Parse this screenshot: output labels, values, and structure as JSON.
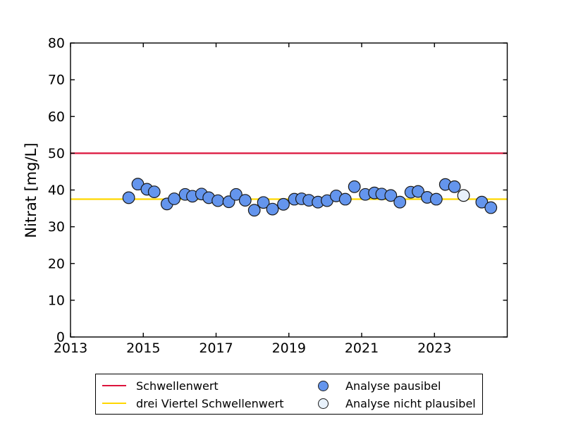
{
  "figure": {
    "background": "#ffffff"
  },
  "chart_data": {
    "type": "scatter",
    "title": "",
    "xlabel": "",
    "ylabel": "Nitrat [mg/L]",
    "xlim": [
      2013,
      2025
    ],
    "ylim": [
      0,
      80
    ],
    "xticks": [
      2013,
      2015,
      2017,
      2019,
      2021,
      2023
    ],
    "yticks": [
      0,
      10,
      20,
      30,
      40,
      50,
      60,
      70,
      80
    ],
    "grid": false,
    "hlines": [
      {
        "label": "Schwellenwert",
        "y": 50,
        "color": "#dc143c"
      },
      {
        "label": "drei Viertel Schwellenwert",
        "y": 37.5,
        "color": "#ffd700"
      }
    ],
    "series": [
      {
        "name": "Analyse pausibel",
        "marker": "circle-filled",
        "fill": "#6495ed",
        "edge": "#1a1a1a",
        "points": [
          [
            2014.6,
            37.9
          ],
          [
            2014.85,
            41.6
          ],
          [
            2015.1,
            40.2
          ],
          [
            2015.3,
            39.5
          ],
          [
            2015.65,
            36.2
          ],
          [
            2015.85,
            37.6
          ],
          [
            2016.15,
            38.8
          ],
          [
            2016.35,
            38.3
          ],
          [
            2016.6,
            38.9
          ],
          [
            2016.8,
            37.9
          ],
          [
            2017.05,
            37.1
          ],
          [
            2017.35,
            36.8
          ],
          [
            2017.55,
            38.8
          ],
          [
            2017.8,
            37.2
          ],
          [
            2018.05,
            34.5
          ],
          [
            2018.3,
            36.6
          ],
          [
            2018.55,
            34.8
          ],
          [
            2018.85,
            36.1
          ],
          [
            2019.15,
            37.5
          ],
          [
            2019.35,
            37.6
          ],
          [
            2019.55,
            37.2
          ],
          [
            2019.8,
            36.7
          ],
          [
            2020.05,
            37.1
          ],
          [
            2020.3,
            38.4
          ],
          [
            2020.55,
            37.5
          ],
          [
            2020.8,
            40.9
          ],
          [
            2021.1,
            38.8
          ],
          [
            2021.35,
            39.2
          ],
          [
            2021.55,
            38.9
          ],
          [
            2021.8,
            38.5
          ],
          [
            2022.05,
            36.7
          ],
          [
            2022.35,
            39.4
          ],
          [
            2022.55,
            39.6
          ],
          [
            2022.8,
            38.0
          ],
          [
            2023.05,
            37.5
          ],
          [
            2023.3,
            41.5
          ],
          [
            2023.55,
            40.9
          ],
          [
            2024.3,
            36.7
          ],
          [
            2024.55,
            35.2
          ]
        ]
      },
      {
        "name": "Analyse nicht plausibel",
        "marker": "circle-open",
        "fill": "#e8f1fb",
        "edge": "#1a1a1a",
        "points": [
          [
            2023.8,
            38.5
          ]
        ]
      }
    ],
    "legend": {
      "position": "bottom",
      "entries": [
        {
          "label": "Schwellenwert",
          "swatch": "line",
          "color": "#dc143c"
        },
        {
          "label": "drei Viertel Schwellenwert",
          "swatch": "line",
          "color": "#ffd700"
        },
        {
          "label": "Analyse pausibel",
          "swatch": "circle-filled",
          "color": "#6495ed"
        },
        {
          "label": "Analyse nicht plausibel",
          "swatch": "circle-open",
          "color": "#e8f1fb"
        }
      ]
    }
  }
}
